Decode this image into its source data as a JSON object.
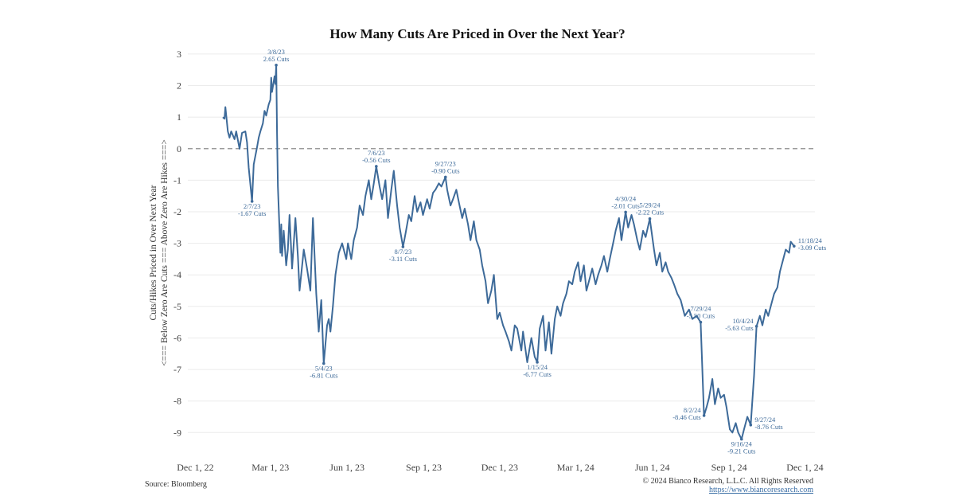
{
  "chart_data": {
    "type": "line",
    "title": "How Many Cuts Are Priced in Over the Next Year?",
    "ylabel": "Cuts/Hikes Priced in Over Next Year",
    "ylabel2": "<=== Below Zero Are Cuts === Above Zero Are Hikes ===>",
    "xlabel": "",
    "ylim": [
      -9.8,
      3.2
    ],
    "yticks": [
      3,
      2,
      1,
      0,
      -1,
      -2,
      -3,
      -4,
      -5,
      -6,
      -7,
      -8,
      -9
    ],
    "xticks": [
      {
        "label": "Dec 1, 22",
        "date": "2022-12-01"
      },
      {
        "label": "Mar 1, 23",
        "date": "2023-03-01"
      },
      {
        "label": "Jun 1, 23",
        "date": "2023-06-01"
      },
      {
        "label": "Sep 1, 23",
        "date": "2023-09-01"
      },
      {
        "label": "Dec 1, 23",
        "date": "2023-12-01"
      },
      {
        "label": "Mar 1, 24",
        "date": "2024-03-01"
      },
      {
        "label": "Jun 1, 24",
        "date": "2024-06-01"
      },
      {
        "label": "Sep 1, 24",
        "date": "2024-09-01"
      },
      {
        "label": "Dec 1, 24",
        "date": "2024-12-01"
      }
    ],
    "xlim": [
      "2022-11-22",
      "2024-12-13"
    ],
    "zero_line": 0,
    "line_color": "#3d6a99",
    "series": [
      {
        "points": [
          [
            "2023-01-03",
            1.0
          ],
          [
            "2023-01-05",
            0.95
          ],
          [
            "2023-01-06",
            1.32
          ],
          [
            "2023-01-09",
            0.55
          ],
          [
            "2023-01-11",
            0.35
          ],
          [
            "2023-01-13",
            0.55
          ],
          [
            "2023-01-17",
            0.3
          ],
          [
            "2023-01-19",
            0.55
          ],
          [
            "2023-01-23",
            0.0
          ],
          [
            "2023-01-26",
            0.5
          ],
          [
            "2023-01-30",
            0.55
          ],
          [
            "2023-02-01",
            0.2
          ],
          [
            "2023-02-03",
            -0.6
          ],
          [
            "2023-02-07",
            -1.67
          ],
          [
            "2023-02-09",
            -0.5
          ],
          [
            "2023-02-13",
            0.05
          ],
          [
            "2023-02-15",
            0.35
          ],
          [
            "2023-02-17",
            0.55
          ],
          [
            "2023-02-20",
            0.8
          ],
          [
            "2023-02-22",
            1.2
          ],
          [
            "2023-02-24",
            1.05
          ],
          [
            "2023-02-27",
            1.4
          ],
          [
            "2023-03-01",
            1.55
          ],
          [
            "2023-03-02",
            2.25
          ],
          [
            "2023-03-03",
            1.8
          ],
          [
            "2023-03-06",
            2.3
          ],
          [
            "2023-03-07",
            2.05
          ],
          [
            "2023-03-08",
            2.65
          ],
          [
            "2023-03-09",
            0.5
          ],
          [
            "2023-03-10",
            -1.2
          ],
          [
            "2023-03-13",
            -3.3
          ],
          [
            "2023-03-14",
            -2.4
          ],
          [
            "2023-03-15",
            -3.4
          ],
          [
            "2023-03-17",
            -2.6
          ],
          [
            "2023-03-20",
            -3.7
          ],
          [
            "2023-03-22",
            -3.2
          ],
          [
            "2023-03-24",
            -2.1
          ],
          [
            "2023-03-27",
            -3.8
          ],
          [
            "2023-03-29",
            -3.0
          ],
          [
            "2023-03-31",
            -2.2
          ],
          [
            "2023-04-03",
            -3.4
          ],
          [
            "2023-04-05",
            -4.5
          ],
          [
            "2023-04-10",
            -3.2
          ],
          [
            "2023-04-14",
            -3.8
          ],
          [
            "2023-04-18",
            -4.5
          ],
          [
            "2023-04-21",
            -2.2
          ],
          [
            "2023-04-25",
            -4.6
          ],
          [
            "2023-04-28",
            -5.8
          ],
          [
            "2023-05-01",
            -4.8
          ],
          [
            "2023-05-04",
            -6.81
          ],
          [
            "2023-05-08",
            -5.6
          ],
          [
            "2023-05-10",
            -5.4
          ],
          [
            "2023-05-12",
            -5.8
          ],
          [
            "2023-05-15",
            -5.0
          ],
          [
            "2023-05-18",
            -4.0
          ],
          [
            "2023-05-22",
            -3.3
          ],
          [
            "2023-05-26",
            -3.0
          ],
          [
            "2023-05-31",
            -3.5
          ],
          [
            "2023-06-02",
            -3.0
          ],
          [
            "2023-06-06",
            -3.5
          ],
          [
            "2023-06-09",
            -2.9
          ],
          [
            "2023-06-13",
            -2.5
          ],
          [
            "2023-06-16",
            -1.8
          ],
          [
            "2023-06-20",
            -2.1
          ],
          [
            "2023-06-23",
            -1.5
          ],
          [
            "2023-06-27",
            -1.0
          ],
          [
            "2023-06-30",
            -1.6
          ],
          [
            "2023-07-03",
            -1.1
          ],
          [
            "2023-07-06",
            -0.56
          ],
          [
            "2023-07-10",
            -1.2
          ],
          [
            "2023-07-13",
            -1.6
          ],
          [
            "2023-07-17",
            -1.0
          ],
          [
            "2023-07-20",
            -2.2
          ],
          [
            "2023-07-24",
            -1.3
          ],
          [
            "2023-07-27",
            -0.7
          ],
          [
            "2023-07-31",
            -1.8
          ],
          [
            "2023-08-03",
            -2.5
          ],
          [
            "2023-08-07",
            -3.11
          ],
          [
            "2023-08-10",
            -2.7
          ],
          [
            "2023-08-14",
            -2.1
          ],
          [
            "2023-08-17",
            -2.3
          ],
          [
            "2023-08-21",
            -1.5
          ],
          [
            "2023-08-24",
            -2.0
          ],
          [
            "2023-08-28",
            -1.7
          ],
          [
            "2023-08-31",
            -2.1
          ],
          [
            "2023-09-05",
            -1.6
          ],
          [
            "2023-09-08",
            -1.9
          ],
          [
            "2023-09-12",
            -1.4
          ],
          [
            "2023-09-15",
            -1.3
          ],
          [
            "2023-09-19",
            -1.1
          ],
          [
            "2023-09-22",
            -1.2
          ],
          [
            "2023-09-27",
            -0.9
          ],
          [
            "2023-09-29",
            -1.3
          ],
          [
            "2023-10-03",
            -1.8
          ],
          [
            "2023-10-06",
            -1.6
          ],
          [
            "2023-10-10",
            -1.3
          ],
          [
            "2023-10-13",
            -1.7
          ],
          [
            "2023-10-17",
            -2.2
          ],
          [
            "2023-10-20",
            -1.9
          ],
          [
            "2023-10-24",
            -2.4
          ],
          [
            "2023-10-27",
            -2.9
          ],
          [
            "2023-10-31",
            -2.3
          ],
          [
            "2023-11-03",
            -2.9
          ],
          [
            "2023-11-07",
            -3.2
          ],
          [
            "2023-11-10",
            -3.7
          ],
          [
            "2023-11-14",
            -4.2
          ],
          [
            "2023-11-17",
            -4.9
          ],
          [
            "2023-11-21",
            -4.5
          ],
          [
            "2023-11-24",
            -4.0
          ],
          [
            "2023-11-28",
            -5.4
          ],
          [
            "2023-12-01",
            -5.2
          ],
          [
            "2023-12-05",
            -5.6
          ],
          [
            "2023-12-08",
            -5.8
          ],
          [
            "2023-12-12",
            -6.1
          ],
          [
            "2023-12-15",
            -6.4
          ],
          [
            "2023-12-19",
            -5.6
          ],
          [
            "2023-12-22",
            -5.7
          ],
          [
            "2023-12-27",
            -6.4
          ],
          [
            "2023-12-29",
            -5.8
          ],
          [
            "2024-01-03",
            -6.77
          ],
          [
            "2024-01-08",
            -6.0
          ],
          [
            "2024-01-12",
            -6.6
          ],
          [
            "2024-01-15",
            -6.77
          ],
          [
            "2024-01-18",
            -5.7
          ],
          [
            "2024-01-22",
            -5.3
          ],
          [
            "2024-01-25",
            -6.4
          ],
          [
            "2024-01-29",
            -5.5
          ],
          [
            "2024-02-01",
            -6.5
          ],
          [
            "2024-02-05",
            -5.4
          ],
          [
            "2024-02-08",
            -5.0
          ],
          [
            "2024-02-12",
            -5.3
          ],
          [
            "2024-02-15",
            -4.9
          ],
          [
            "2024-02-19",
            -4.6
          ],
          [
            "2024-02-22",
            -4.2
          ],
          [
            "2024-02-26",
            -4.3
          ],
          [
            "2024-02-29",
            -3.9
          ],
          [
            "2024-03-04",
            -3.6
          ],
          [
            "2024-03-07",
            -4.2
          ],
          [
            "2024-03-11",
            -3.7
          ],
          [
            "2024-03-14",
            -4.5
          ],
          [
            "2024-03-18",
            -4.1
          ],
          [
            "2024-03-21",
            -3.8
          ],
          [
            "2024-03-25",
            -4.3
          ],
          [
            "2024-03-28",
            -4.0
          ],
          [
            "2024-04-01",
            -3.7
          ],
          [
            "2024-04-04",
            -3.4
          ],
          [
            "2024-04-08",
            -3.9
          ],
          [
            "2024-04-11",
            -3.5
          ],
          [
            "2024-04-15",
            -3.0
          ],
          [
            "2024-04-18",
            -2.6
          ],
          [
            "2024-04-22",
            -2.2
          ],
          [
            "2024-04-25",
            -2.9
          ],
          [
            "2024-04-30",
            -2.01
          ],
          [
            "2024-05-03",
            -2.5
          ],
          [
            "2024-05-07",
            -2.1
          ],
          [
            "2024-05-10",
            -2.4
          ],
          [
            "2024-05-14",
            -2.9
          ],
          [
            "2024-05-17",
            -3.2
          ],
          [
            "2024-05-21",
            -2.6
          ],
          [
            "2024-05-24",
            -2.8
          ],
          [
            "2024-05-29",
            -2.22
          ],
          [
            "2024-06-03",
            -3.2
          ],
          [
            "2024-06-06",
            -3.7
          ],
          [
            "2024-06-10",
            -3.3
          ],
          [
            "2024-06-13",
            -3.9
          ],
          [
            "2024-06-17",
            -3.6
          ],
          [
            "2024-06-20",
            -3.9
          ],
          [
            "2024-06-24",
            -4.1
          ],
          [
            "2024-06-27",
            -4.3
          ],
          [
            "2024-07-01",
            -4.6
          ],
          [
            "2024-07-05",
            -4.8
          ],
          [
            "2024-07-10",
            -5.3
          ],
          [
            "2024-07-15",
            -5.1
          ],
          [
            "2024-07-19",
            -5.4
          ],
          [
            "2024-07-24",
            -5.3
          ],
          [
            "2024-07-29",
            -5.5
          ],
          [
            "2024-08-02",
            -8.46
          ],
          [
            "2024-08-05",
            -8.2
          ],
          [
            "2024-08-08",
            -7.9
          ],
          [
            "2024-08-12",
            -7.3
          ],
          [
            "2024-08-15",
            -8.1
          ],
          [
            "2024-08-19",
            -7.6
          ],
          [
            "2024-08-22",
            -7.9
          ],
          [
            "2024-08-26",
            -7.8
          ],
          [
            "2024-08-29",
            -8.2
          ],
          [
            "2024-09-02",
            -8.9
          ],
          [
            "2024-09-05",
            -9.0
          ],
          [
            "2024-09-09",
            -8.7
          ],
          [
            "2024-09-12",
            -9.0
          ],
          [
            "2024-09-16",
            -9.21
          ],
          [
            "2024-09-19",
            -8.9
          ],
          [
            "2024-09-23",
            -8.5
          ],
          [
            "2024-09-27",
            -8.76
          ],
          [
            "2024-10-01",
            -7.2
          ],
          [
            "2024-10-04",
            -5.63
          ],
          [
            "2024-10-08",
            -5.3
          ],
          [
            "2024-10-11",
            -5.6
          ],
          [
            "2024-10-15",
            -5.1
          ],
          [
            "2024-10-18",
            -5.3
          ],
          [
            "2024-10-22",
            -4.9
          ],
          [
            "2024-10-25",
            -4.6
          ],
          [
            "2024-10-29",
            -4.4
          ],
          [
            "2024-11-01",
            -3.9
          ],
          [
            "2024-11-05",
            -3.5
          ],
          [
            "2024-11-08",
            -3.2
          ],
          [
            "2024-11-12",
            -3.3
          ],
          [
            "2024-11-14",
            -2.95
          ],
          [
            "2024-11-18",
            -3.09
          ]
        ]
      }
    ],
    "annotations": [
      {
        "date": "2023-02-07",
        "value": -1.67,
        "label1": "2/7/23",
        "label2": "-1.67 Cuts",
        "pos": "below"
      },
      {
        "date": "2023-03-08",
        "value": 2.65,
        "label1": "3/8/23",
        "label2": "2.65 Cuts",
        "pos": "above"
      },
      {
        "date": "2023-05-04",
        "value": -6.81,
        "label1": "5/4/23",
        "label2": "-6.81 Cuts",
        "pos": "below"
      },
      {
        "date": "2023-07-06",
        "value": -0.56,
        "label1": "7/6/23",
        "label2": "-0.56 Cuts",
        "pos": "above"
      },
      {
        "date": "2023-08-07",
        "value": -3.11,
        "label1": "8/7/23",
        "label2": "-3.11 Cuts",
        "pos": "below"
      },
      {
        "date": "2023-09-27",
        "value": -0.9,
        "label1": "9/27/23",
        "label2": "-0.90 Cuts",
        "pos": "above"
      },
      {
        "date": "2024-01-15",
        "value": -6.77,
        "label1": "1/15/24",
        "label2": "-6.77 Cuts",
        "pos": "below"
      },
      {
        "date": "2024-04-30",
        "value": -2.01,
        "label1": "4/30/24",
        "label2": "-2.01 Cuts",
        "pos": "above"
      },
      {
        "date": "2024-05-29",
        "value": -2.22,
        "label1": "5/29/24",
        "label2": "-2.22 Cuts",
        "pos": "above"
      },
      {
        "date": "2024-07-29",
        "value": -5.5,
        "label1": "7/29/24",
        "label2": "-5.50 Cuts",
        "pos": "above"
      },
      {
        "date": "2024-08-02",
        "value": -8.46,
        "label1": "8/2/24",
        "label2": "-8.46 Cuts",
        "pos": "left"
      },
      {
        "date": "2024-09-16",
        "value": -9.21,
        "label1": "9/16/24",
        "label2": "-9.21 Cuts",
        "pos": "below"
      },
      {
        "date": "2024-09-27",
        "value": -8.76,
        "label1": "9/27/24",
        "label2": "-8.76 Cuts",
        "pos": "right"
      },
      {
        "date": "2024-10-04",
        "value": -5.63,
        "label1": "10/4/24",
        "label2": "-5.63 Cuts",
        "pos": "left"
      },
      {
        "date": "2024-11-18",
        "value": -3.09,
        "label1": "11/18/24",
        "label2": "-3.09 Cuts",
        "pos": "right"
      }
    ]
  },
  "footer": {
    "source": "Source: Bloomberg",
    "copyright": "© 2024 Bianco Research, L.L.C. All Rights Reserved",
    "link": "https://www.biancoresearch.com"
  }
}
